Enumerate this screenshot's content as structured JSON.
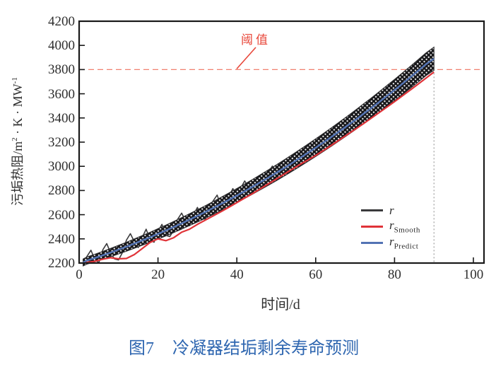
{
  "figure": {
    "label": "图7",
    "title": "冷凝器结垢剩余寿命预测",
    "caption_color": "#2e66b0"
  },
  "axes": {
    "x": {
      "title": "时间/d",
      "ticks": [
        0,
        20,
        40,
        60,
        80,
        100
      ],
      "range": [
        0,
        100
      ]
    },
    "y": {
      "title_parts": {
        "prefix": "污垢热阻/m",
        "sup1": "2",
        "mid": " · K · MW",
        "sup2": "-1"
      },
      "ticks": [
        2200,
        2400,
        2600,
        2800,
        3000,
        3200,
        3400,
        3600,
        3800,
        4000,
        4200
      ],
      "range": [
        2200,
        4200
      ]
    }
  },
  "threshold": {
    "label": "阈值",
    "value": 3800,
    "text_color": "#e8473a",
    "line_color": "#f0806f"
  },
  "legend": [
    {
      "name": "r",
      "sub": "",
      "color": "#3a3a3c"
    },
    {
      "name": "r",
      "sub": "Smooth",
      "color": "#e03338"
    },
    {
      "name": "r",
      "sub": "Predict",
      "color": "#5373b4"
    }
  ],
  "chart_data": {
    "type": "line",
    "title": "图7 冷凝器结垢剩余寿命预测",
    "xlabel": "时间/d",
    "ylabel": "污垢热阻/m²·K·MW⁻¹",
    "xlim": [
      0,
      100
    ],
    "ylim": [
      2200,
      4200
    ],
    "x_ticks": [
      0,
      20,
      40,
      60,
      80,
      100
    ],
    "y_ticks": [
      2200,
      2400,
      2600,
      2800,
      3000,
      3200,
      3400,
      3600,
      3800,
      4000,
      4200
    ],
    "grid": false,
    "legend_position": "lower right",
    "threshold": {
      "label": "阈值",
      "value": 3800
    },
    "prediction_end_day": 90,
    "series": [
      {
        "name": "r",
        "color": "#3a3a3c",
        "style": "noisy-markers",
        "x": [
          1,
          2,
          3,
          4,
          5,
          6,
          7,
          8,
          9,
          10,
          11,
          12,
          13,
          14,
          15,
          16,
          17,
          18,
          19,
          20,
          21,
          22,
          23,
          24,
          25,
          26,
          27,
          28,
          29,
          30,
          31,
          32,
          33,
          34,
          35,
          36,
          37,
          38,
          39,
          40,
          41,
          42,
          43,
          44,
          45,
          46,
          47,
          48,
          49,
          50,
          51,
          52,
          53,
          54,
          55,
          56,
          57,
          58,
          59,
          60,
          61,
          62,
          63,
          64,
          65,
          66,
          67,
          68,
          69,
          70,
          71,
          72,
          73,
          74,
          75,
          76,
          77,
          78,
          79,
          80,
          81,
          82,
          83,
          84,
          85,
          86,
          87,
          88,
          89,
          90
        ],
        "y": [
          2200,
          2256,
          2306,
          2227,
          2203,
          2309,
          2361,
          2282,
          2234,
          2226,
          2288,
          2390,
          2443,
          2376,
          2328,
          2412,
          2480,
          2393,
          2372,
          2461,
          2520,
          2429,
          2419,
          2473,
          2563,
          2613,
          2548,
          2509,
          2599,
          2660,
          2576,
          2562,
          2654,
          2715,
          2762,
          2674,
          2661,
          2753,
          2816,
          2733,
          2821,
          2879,
          2823,
          2791,
          2905,
          2894,
          2863,
          2947,
          3002,
          2931,
          3001,
          3051,
          2987,
          3052,
          3103,
          3044,
          3130,
          3181,
          3138,
          3199,
          3161,
          3228,
          3281,
          3233,
          3301,
          3354,
          3312,
          3305,
          3384,
          3437,
          3386,
          3461,
          3515,
          3474,
          3544,
          3599,
          3564,
          3555,
          3635,
          3691,
          3642,
          3708,
          3765,
          3736,
          3798,
          3855,
          3827,
          3825,
          3902,
          3950
        ]
      },
      {
        "name": "r_Smooth",
        "color": "#e03338",
        "style": "smooth",
        "x": [
          1,
          2,
          4,
          6,
          8,
          10,
          12,
          14,
          16,
          18,
          20,
          22,
          24,
          26,
          28,
          30,
          32,
          34,
          36,
          38,
          40,
          42,
          44,
          46,
          48,
          50,
          52,
          54,
          56,
          58,
          60,
          62,
          64,
          66,
          68,
          70,
          72,
          74,
          76,
          78,
          80,
          82,
          84,
          86,
          88,
          90
        ],
        "y": [
          2200,
          2205,
          2215,
          2232,
          2244,
          2235,
          2238,
          2270,
          2320,
          2370,
          2400,
          2385,
          2410,
          2455,
          2480,
          2520,
          2555,
          2590,
          2625,
          2662,
          2700,
          2738,
          2775,
          2815,
          2855,
          2895,
          2935,
          2975,
          3015,
          3052,
          3090,
          3132,
          3175,
          3218,
          3262,
          3306,
          3350,
          3396,
          3442,
          3488,
          3535,
          3583,
          3631,
          3680,
          3730,
          3780
        ]
      },
      {
        "name": "r_Predict",
        "color": "#5373b4",
        "style": "smooth",
        "x": [
          1,
          2,
          4,
          6,
          8,
          10,
          12,
          14,
          16,
          18,
          20,
          22,
          24,
          26,
          28,
          30,
          32,
          34,
          36,
          38,
          40,
          42,
          44,
          46,
          48,
          50,
          52,
          54,
          56,
          58,
          60,
          62,
          64,
          66,
          68,
          70,
          72,
          74,
          76,
          78,
          80,
          82,
          84,
          86,
          88,
          90
        ],
        "y": [
          2205,
          2221,
          2242,
          2264,
          2287,
          2311,
          2335,
          2361,
          2387,
          2413,
          2441,
          2469,
          2498,
          2528,
          2559,
          2590,
          2622,
          2655,
          2689,
          2723,
          2758,
          2794,
          2831,
          2869,
          2907,
          2946,
          2986,
          3027,
          3069,
          3111,
          3154,
          3198,
          3243,
          3289,
          3335,
          3382,
          3431,
          3479,
          3529,
          3580,
          3631,
          3683,
          3736,
          3790,
          3845,
          3890
        ]
      }
    ],
    "band": {
      "around_series": "r_Predict",
      "halfwidth_base": 28,
      "halfwidth_per_day": 0.75,
      "note": "dense open-marker band of raw series r"
    }
  },
  "marker_line": {
    "day": 90,
    "color": "#8a8a8a"
  }
}
